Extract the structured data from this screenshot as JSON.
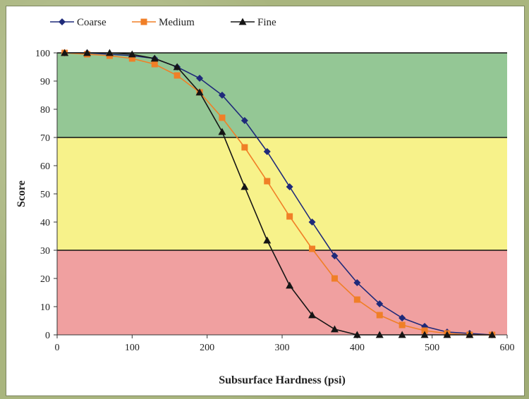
{
  "chart_data": {
    "type": "line",
    "title": "",
    "xlabel": "Subsurface Hardness (psi)",
    "ylabel": "Score",
    "xlim": [
      0,
      600
    ],
    "ylim": [
      0,
      100
    ],
    "x_ticks": [
      0,
      100,
      200,
      300,
      400,
      500,
      600
    ],
    "y_ticks": [
      0,
      10,
      20,
      30,
      40,
      50,
      60,
      70,
      80,
      90,
      100
    ],
    "legend_position": "top-left",
    "bands": [
      {
        "from": 70,
        "to": 100,
        "color": "#94c795"
      },
      {
        "from": 30,
        "to": 70,
        "color": "#f7f28a"
      },
      {
        "from": 0,
        "to": 30,
        "color": "#f0a0a0"
      }
    ],
    "x": [
      10,
      40,
      70,
      100,
      130,
      160,
      190,
      220,
      250,
      280,
      310,
      340,
      370,
      400,
      430,
      460,
      490,
      520,
      550,
      580
    ],
    "series": [
      {
        "name": "Coarse",
        "color": "#1f2a7a",
        "marker": "diamond",
        "values": [
          100,
          100,
          99.5,
          99,
          98,
          95,
          91,
          85,
          76,
          65,
          52.5,
          40,
          28,
          18.5,
          11,
          6,
          3,
          1,
          0.5,
          0
        ]
      },
      {
        "name": "Medium",
        "color": "#f07f27",
        "marker": "square",
        "values": [
          100,
          99.5,
          99,
          98,
          96,
          92,
          86,
          77,
          66.5,
          54.5,
          42,
          30.5,
          20,
          12.5,
          7,
          3.5,
          1.5,
          0.5,
          0,
          0
        ]
      },
      {
        "name": "Fine",
        "color": "#151515",
        "marker": "triangle",
        "values": [
          100,
          100,
          100,
          99.5,
          98,
          95,
          86,
          72,
          52.5,
          33.5,
          17.5,
          7,
          2,
          0,
          0,
          0,
          0,
          0,
          0,
          0
        ]
      }
    ]
  }
}
